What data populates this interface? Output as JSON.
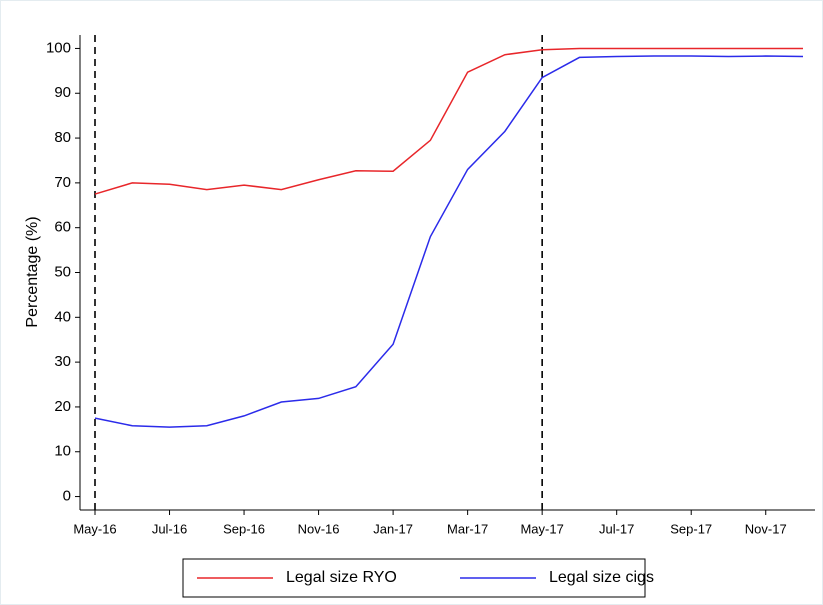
{
  "chart_data": {
    "type": "line",
    "y_label": "Percentage (%)",
    "categories": [
      "May-16",
      null,
      "Jul-16",
      null,
      "Sep-16",
      null,
      "Nov-16",
      null,
      "Jan-17",
      null,
      "Mar-17",
      null,
      "May-17",
      null,
      "Jul-17",
      null,
      "Sep-17",
      null,
      "Nov-17",
      null
    ],
    "series": [
      {
        "name": "Legal size RYO",
        "color": "#e8262a",
        "values": [
          67.5,
          70,
          69.7,
          68.5,
          69.5,
          68.5,
          70.7,
          72.7,
          72.6,
          79.5,
          94.7,
          98.6,
          99.7,
          100,
          100,
          100,
          100,
          100,
          100,
          100
        ]
      },
      {
        "name": "Legal size cigs",
        "color": "#2b2bea",
        "values": [
          17.5,
          15.8,
          15.5,
          15.8,
          18,
          21.1,
          21.9,
          24.5,
          34,
          58,
          73,
          81.5,
          93.5,
          98,
          98.2,
          98.3,
          98.3,
          98.2,
          98.3,
          98.2
        ]
      }
    ],
    "vlines": [
      "May-16",
      "May-17"
    ],
    "ylim": [
      -3,
      103
    ],
    "yticks": [
      0,
      10,
      20,
      30,
      40,
      50,
      60,
      70,
      80,
      90,
      100
    ],
    "legend": "bottom"
  }
}
